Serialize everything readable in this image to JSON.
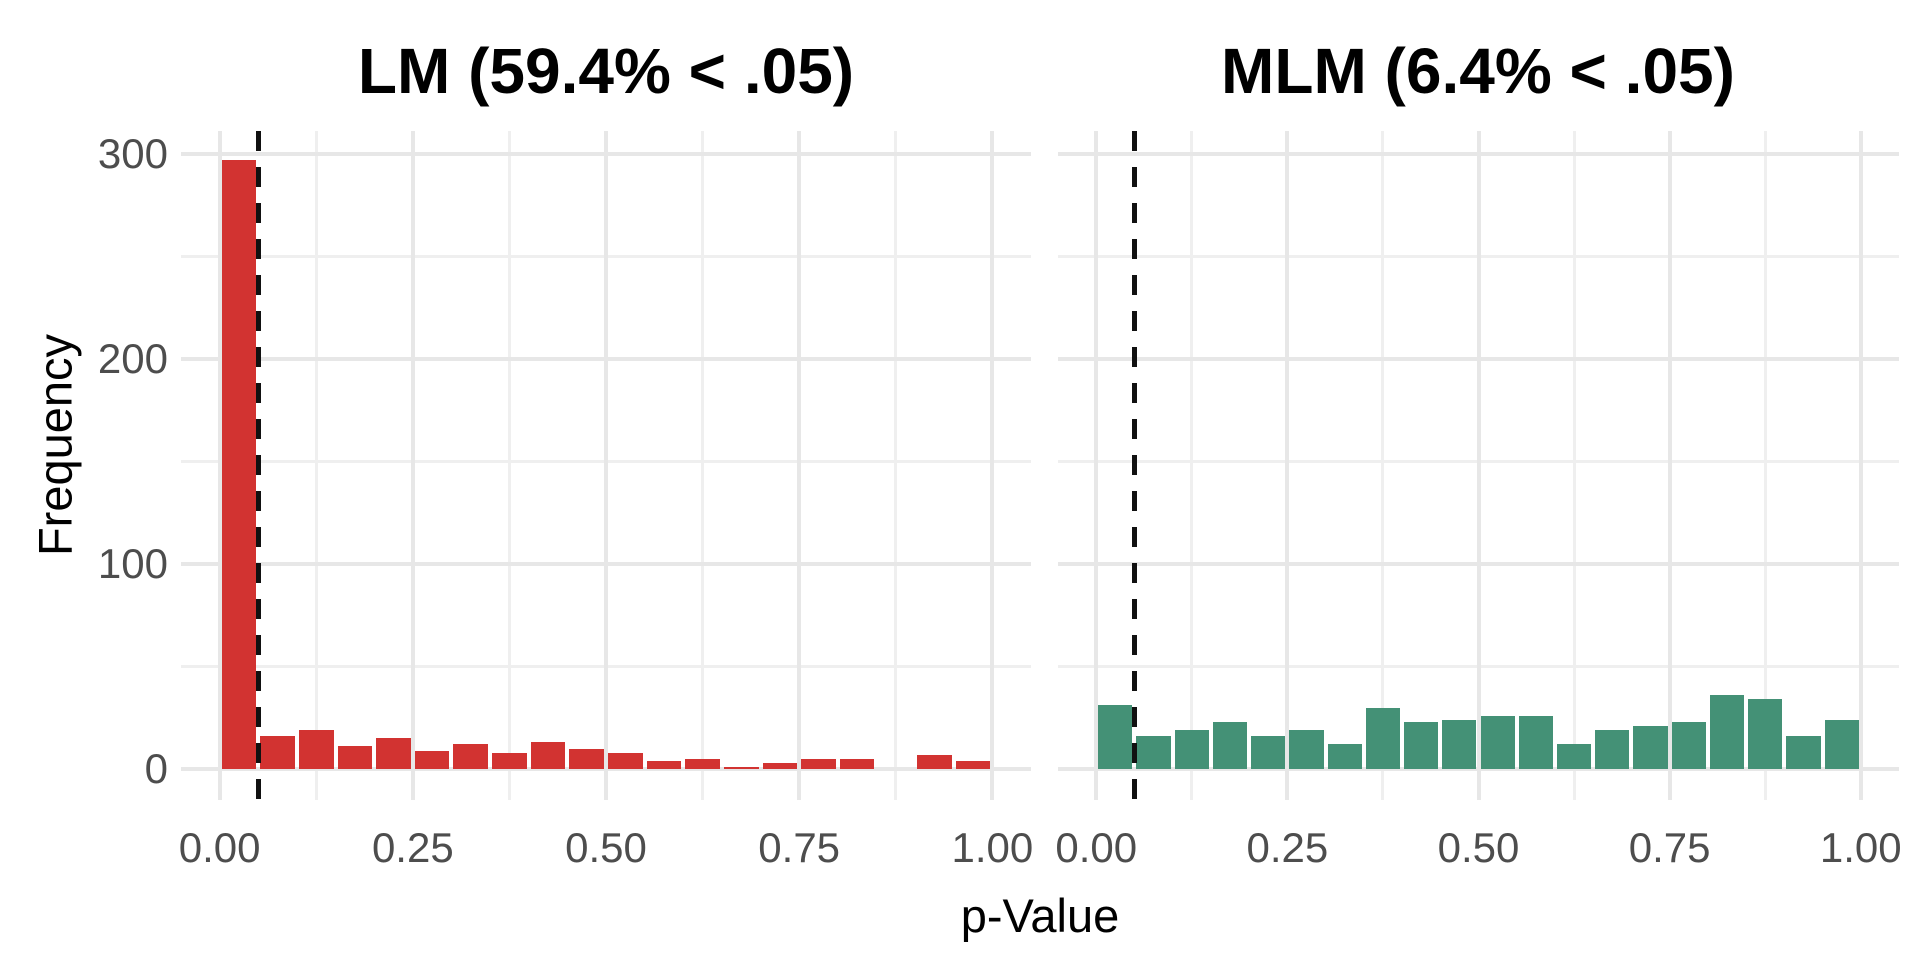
{
  "figure": {
    "y_axis_label": "Frequency",
    "x_axis_label": "p-Value",
    "y_tick_labels": [
      "0",
      "100",
      "200",
      "300"
    ],
    "x_tick_labels": [
      "0.00",
      "0.25",
      "0.50",
      "0.75",
      "1.00"
    ],
    "colors": {
      "background": "#ffffff",
      "grid_major": "#e7e7e7",
      "grid_minor": "#efefef",
      "tick_text": "#4d4d4d",
      "title_text": "#000000",
      "threshold_line": "#111111",
      "lm_bar": "#d23331",
      "mlm_bar": "#449176"
    }
  },
  "chart_data": [
    {
      "type": "bar",
      "subtype": "histogram",
      "title": "LM (59.4% < .05)",
      "xlabel": "p-Value",
      "ylabel": "Frequency",
      "bar_color": "#d23331",
      "bin_width": 0.05,
      "bin_centers": [
        0.025,
        0.075,
        0.125,
        0.175,
        0.225,
        0.275,
        0.325,
        0.375,
        0.425,
        0.475,
        0.525,
        0.575,
        0.625,
        0.675,
        0.725,
        0.775,
        0.825,
        0.875,
        0.925,
        0.975
      ],
      "values": [
        297,
        16,
        19,
        11,
        15,
        9,
        12,
        8,
        13,
        10,
        8,
        4,
        5,
        1,
        3,
        5,
        5,
        0,
        7,
        4
      ],
      "x_ticks": [
        0,
        0.25,
        0.5,
        0.75,
        1
      ],
      "y_ticks": [
        0,
        100,
        200,
        300
      ],
      "xlim": [
        -0.05,
        1.05
      ],
      "ylim": [
        0,
        312
      ],
      "grid": true,
      "legend": false,
      "vline": {
        "x": 0.05,
        "linestyle": "dashed",
        "color": "black"
      }
    },
    {
      "type": "bar",
      "subtype": "histogram",
      "title": "MLM (6.4% < .05)",
      "xlabel": "p-Value",
      "ylabel": "Frequency",
      "bar_color": "#449176",
      "bin_width": 0.05,
      "bin_centers": [
        0.025,
        0.075,
        0.125,
        0.175,
        0.225,
        0.275,
        0.325,
        0.375,
        0.425,
        0.475,
        0.525,
        0.575,
        0.625,
        0.675,
        0.725,
        0.775,
        0.825,
        0.875,
        0.925,
        0.975
      ],
      "values": [
        31,
        16,
        19,
        23,
        16,
        19,
        12,
        30,
        23,
        24,
        26,
        26,
        12,
        19,
        21,
        23,
        36,
        34,
        16,
        24
      ],
      "x_ticks": [
        0,
        0.25,
        0.5,
        0.75,
        1
      ],
      "y_ticks": [
        0,
        100,
        200,
        300
      ],
      "xlim": [
        -0.05,
        1.05
      ],
      "ylim": [
        0,
        312
      ],
      "grid": true,
      "legend": false,
      "vline": {
        "x": 0.05,
        "linestyle": "dashed",
        "color": "black"
      }
    }
  ]
}
